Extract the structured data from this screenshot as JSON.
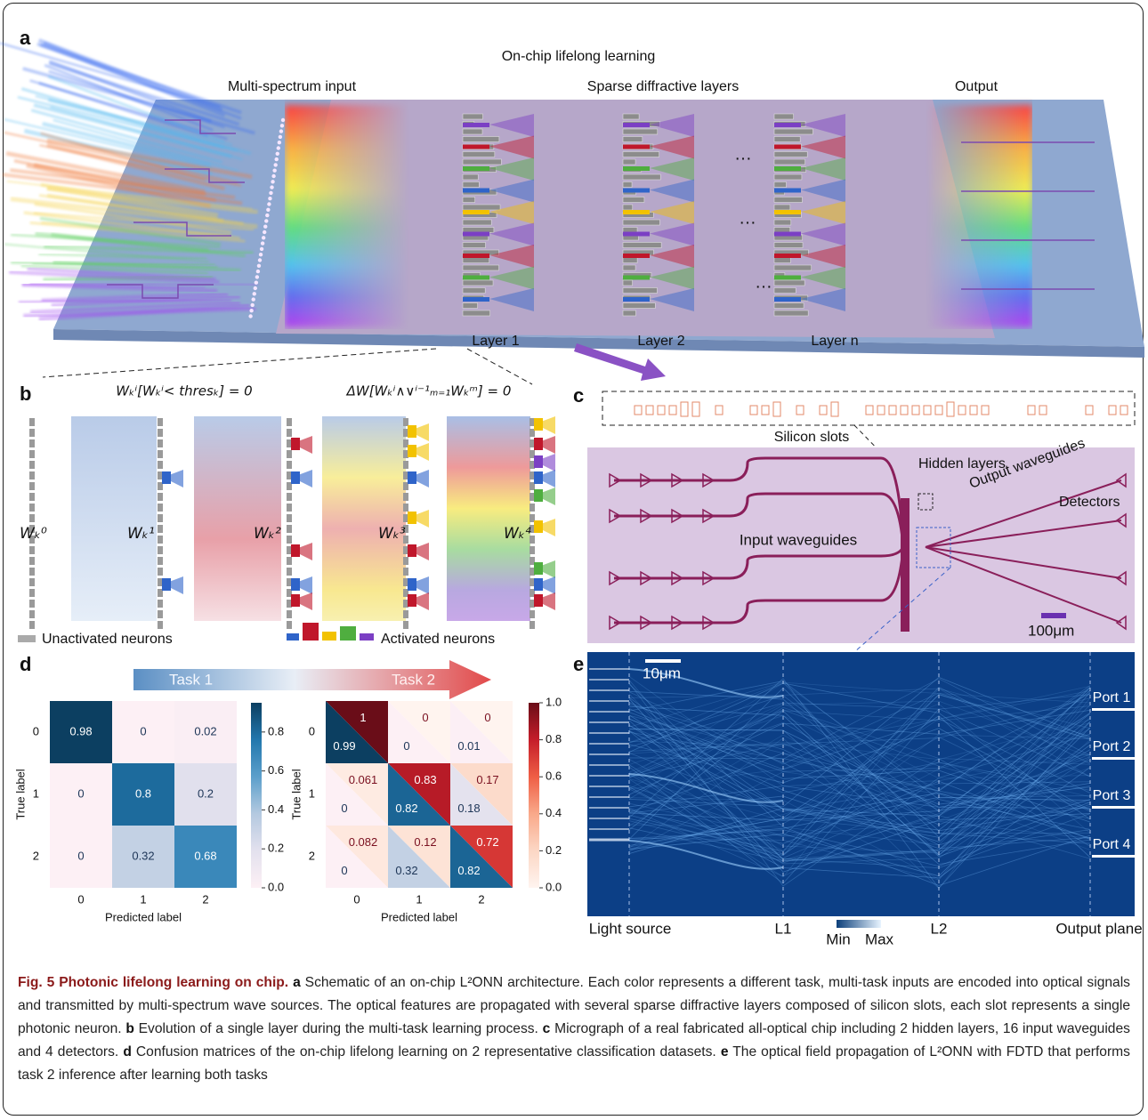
{
  "figure": {
    "a": {
      "label": "a",
      "title": "On-chip lifelong learning",
      "input": "Multi-spectrum input",
      "layers_title": "Sparse diffractive layers",
      "output": "Output",
      "layer_names": [
        "Layer 1",
        "Layer 2",
        "Layer n"
      ],
      "ellipsis": "…"
    },
    "b": {
      "label": "b",
      "eq1": "Wₖⁱ[Wₖⁱ< thresₖ] = 0",
      "eq2": "ΔW[Wₖⁱ∧∨ⁱ⁻¹ₘ₌₁Wₖᵐ] = 0",
      "weights": [
        "Wₖ⁰",
        "Wₖ¹",
        "Wₖ²",
        "Wₖ³",
        "Wₖ⁴"
      ],
      "legend": [
        "Unactivated neurons",
        "Activated neurons"
      ]
    },
    "c": {
      "label": "c",
      "slots": "Silicon slots",
      "hidden": "Hidden layers",
      "output_wg": "Output waveguides",
      "detectors": "Detectors",
      "input_wg": "Input waveguides",
      "scale": "100μm"
    },
    "d": {
      "label": "d",
      "tasks": [
        "Task 1",
        "Task 2"
      ],
      "ylabel": "True label",
      "xlabel": "Predicted label",
      "classes": [
        "0",
        "1",
        "2"
      ],
      "matrix_task1": [
        [
          0.98,
          0,
          0.02
        ],
        [
          0,
          0.8,
          0.2
        ],
        [
          0,
          0.32,
          0.68
        ]
      ],
      "matrix_task2_new": [
        [
          1,
          0,
          0
        ],
        [
          0.061,
          0.83,
          0.17
        ],
        [
          0.082,
          0.12,
          0.72
        ]
      ],
      "matrix_task2_old": [
        [
          0.99,
          0,
          0.01
        ],
        [
          0,
          0.82,
          0.18
        ],
        [
          0,
          0.32,
          0.82
        ]
      ],
      "cbar1": {
        "lim": [
          0,
          0.95
        ],
        "ticks": [
          {
            "value": 0,
            "label": "0.0"
          },
          0.2,
          0.4,
          0.6,
          0.8
        ],
        "colors": [
          "#fdf0f5",
          "#e3e1ee",
          "#b4c9e0",
          "#5c9fcb",
          "#2277ad",
          "#0c3f61"
        ]
      },
      "cbar2": {
        "lim": [
          0,
          1
        ],
        "ticks": [
          {
            "value": 0,
            "label": "0.0"
          },
          0.2,
          0.4,
          0.6,
          0.8,
          {
            "value": 1,
            "label": "1.0"
          }
        ],
        "colors": [
          "#fff4ef",
          "#fcd7c5",
          "#f9a98a",
          "#ef5e45",
          "#c51d2a",
          "#6a0d18"
        ]
      }
    },
    "e": {
      "label": "e",
      "scale": "10μm",
      "source": "Light source",
      "l1": "L1",
      "l2": "L2",
      "output": "Output plane",
      "min": "Min",
      "max": "Max",
      "ports": [
        "Port 1",
        "Port 2",
        "Port 3",
        "Port 4"
      ]
    }
  },
  "caption": {
    "title": "Fig. 5 Photonic lifelong learning on chip.",
    "parts": [
      {
        "label": "a",
        "text": "Schematic of an on-chip L²ONN architecture. Each color represents a different task, multi-task inputs are encoded into optical signals and transmitted by multi-spectrum wave sources. The optical features are propagated with several sparse diffractive layers composed of silicon slots, each slot represents a single photonic neuron."
      },
      {
        "label": "b",
        "text": "Evolution of a single layer during the multi-task learning process."
      },
      {
        "label": "c",
        "text": "Micrograph of a real fabricated all-optical chip including 2 hidden layers, 16 input waveguides and 4 detectors."
      },
      {
        "label": "d",
        "text": "Confusion matrices of the on-chip lifelong learning on 2 representative classification datasets."
      },
      {
        "label": "e",
        "text": "The optical field propagation of L²ONN with FDTD that performs task 2 inference after learning both tasks"
      }
    ]
  }
}
